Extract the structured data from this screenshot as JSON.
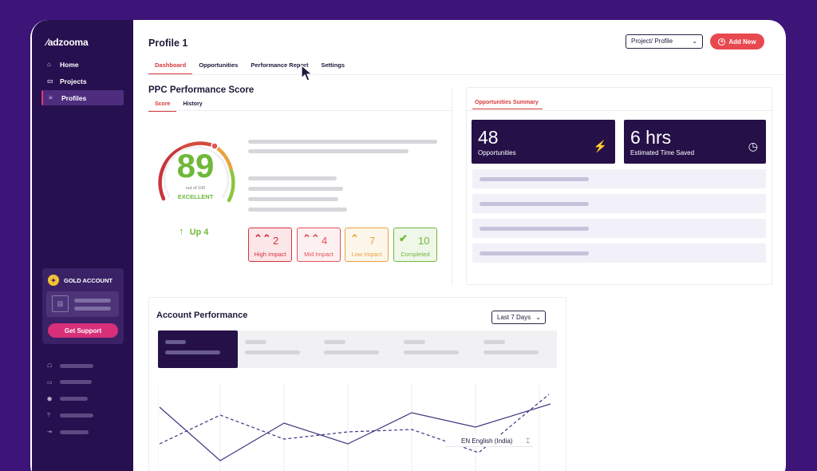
{
  "app": {
    "logo": "adzooma"
  },
  "sidebar": {
    "items": [
      {
        "label": "Home",
        "icon": "home-icon",
        "glyph": "⌂"
      },
      {
        "label": "Projects",
        "icon": "folder-icon",
        "glyph": "▭"
      },
      {
        "label": "Profiles",
        "icon": "list-icon",
        "glyph": "≡"
      }
    ],
    "gold": {
      "title": "GOLD ACCOUNT",
      "button": "Get Support"
    }
  },
  "header": {
    "title": "Profile 1",
    "project_select": "Project/ Profile",
    "add_new": "Add New"
  },
  "tabs": [
    "Dashboard",
    "Opportunities",
    "Performance Report",
    "Settings"
  ],
  "ppc": {
    "title": "PPC Performance Score",
    "subtabs": [
      "Score",
      "History"
    ],
    "score": "89",
    "score_sub": "out of 100",
    "score_label": "EXCELLENT",
    "trend": "Up 4",
    "impacts": [
      {
        "count": "2",
        "label": "High Impact",
        "glyph": "⌃⌃",
        "color": "#d6323f",
        "bg": "#fbe6e8"
      },
      {
        "count": "4",
        "label": "Mid Impact",
        "glyph": "⌃⌃",
        "color": "#e0525a",
        "bg": "#fdf0f1"
      },
      {
        "count": "7",
        "label": "Low Impact",
        "glyph": "⌃",
        "color": "#e9a33c",
        "bg": "#fdf6ea"
      },
      {
        "count": "10",
        "label": "Completed",
        "glyph": "✔",
        "color": "#6fb83a",
        "bg": "#eef7e8"
      }
    ]
  },
  "opportunities": {
    "tab": "Opportunities Summary",
    "stats": [
      {
        "value": "48",
        "caption": "Opportunities",
        "icon": "lightning-icon",
        "glyph": "⚡"
      },
      {
        "value": "6 hrs",
        "caption": "Estimated Time Saved",
        "icon": "clock-icon",
        "glyph": "◷"
      }
    ]
  },
  "account": {
    "title": "Account Performance",
    "range": "Last 7 Days"
  },
  "language": {
    "label": "EN English (India)"
  },
  "colors": {
    "accent": "#d83a3a",
    "brand_dark": "#251048",
    "positive": "#6fb83a"
  }
}
